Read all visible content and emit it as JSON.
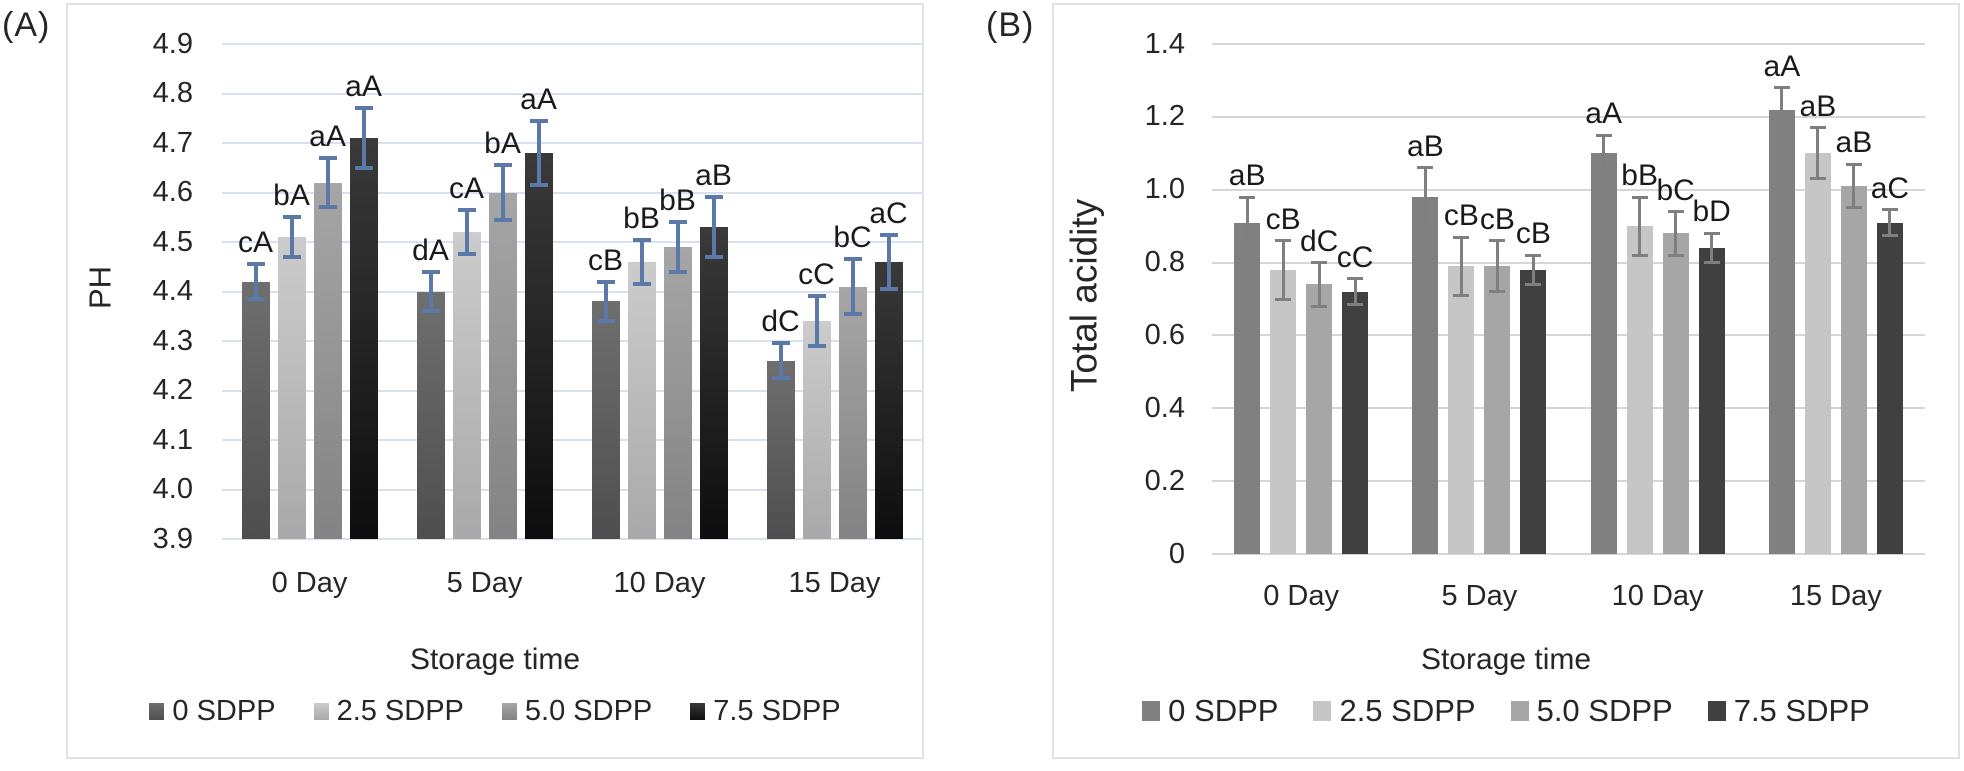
{
  "panel_labels": [
    "(A)",
    "(B)"
  ],
  "chart_data": [
    {
      "type": "bar",
      "panel": "A",
      "title": "",
      "ylabel": "PH",
      "xlabel": "Storage time",
      "categories": [
        "0 Day",
        "5 Day",
        "10 Day",
        "15 Day"
      ],
      "ylim": [
        3.9,
        4.9
      ],
      "yticks": [
        4.9,
        4.8,
        4.7,
        4.6,
        4.5,
        4.4,
        4.3,
        4.2,
        4.1,
        4.0,
        3.9
      ],
      "ytick_labels": [
        "4.9",
        "4.8",
        "4.7",
        "4.6",
        "4.5",
        "4.4",
        "4.3",
        "4.2",
        "4.1",
        "4.0",
        "3.9"
      ],
      "grid": true,
      "legend_position": "bottom",
      "colors": {
        "grid": "#d9e0ee",
        "error_bar": "#5b79a8",
        "text": "#262626"
      },
      "series": [
        {
          "name": "0 SDPP",
          "fill": [
            "#6f6f6f",
            "#4e4e4e"
          ],
          "values": [
            4.42,
            4.4,
            4.38,
            4.26
          ],
          "errors": [
            0.035,
            0.04,
            0.04,
            0.035
          ],
          "sig_labels": [
            "cA",
            "dA",
            "cB",
            "dC"
          ]
        },
        {
          "name": "2.5 SDPP",
          "fill": [
            "#cccccc",
            "#a9a9a9"
          ],
          "values": [
            4.51,
            4.52,
            4.46,
            4.34
          ],
          "errors": [
            0.04,
            0.045,
            0.045,
            0.05
          ],
          "sig_labels": [
            "bA",
            "cA",
            "bB",
            "cC"
          ]
        },
        {
          "name": "5.0 SDPP",
          "fill": [
            "#a6a6a6",
            "#838383"
          ],
          "values": [
            4.62,
            4.6,
            4.49,
            4.41
          ],
          "errors": [
            0.05,
            0.055,
            0.05,
            0.055
          ],
          "sig_labels": [
            "aA",
            "bA",
            "bB",
            "bC"
          ]
        },
        {
          "name": "7.5 SDPP",
          "fill": [
            "#3a3a3a",
            "#0d0d0d"
          ],
          "values": [
            4.71,
            4.68,
            4.53,
            4.46
          ],
          "errors": [
            0.06,
            0.065,
            0.06,
            0.055
          ],
          "sig_labels": [
            "aA",
            "aA",
            "aB",
            "aC"
          ]
        }
      ]
    },
    {
      "type": "bar",
      "panel": "B",
      "title": "",
      "ylabel": "Total acidity",
      "xlabel": "Storage time",
      "categories": [
        "0 Day",
        "5 Day",
        "10 Day",
        "15 Day"
      ],
      "ylim": [
        0,
        1.4
      ],
      "yticks": [
        1.4,
        1.2,
        1.0,
        0.8,
        0.6,
        0.4,
        0.2,
        0
      ],
      "ytick_labels": [
        "1.4",
        "1.2",
        "1.0",
        "0.8",
        "0.6",
        "0.4",
        "0.2",
        "0"
      ],
      "grid": true,
      "legend_position": "bottom",
      "colors": {
        "grid": "#d6d6d6",
        "error_bar": "#7f7f7f",
        "text": "#262626"
      },
      "series": [
        {
          "name": "0 SDPP",
          "fill": "#808080",
          "values": [
            0.91,
            0.98,
            1.1,
            1.22
          ],
          "errors": [
            0.07,
            0.08,
            0.05,
            0.06
          ],
          "sig_labels": [
            "aB",
            "aB",
            "aA",
            "aA"
          ]
        },
        {
          "name": "2.5 SDPP",
          "fill": "#c6c6c6",
          "values": [
            0.78,
            0.79,
            0.9,
            1.1
          ],
          "errors": [
            0.08,
            0.08,
            0.08,
            0.07
          ],
          "sig_labels": [
            "cB",
            "cB",
            "bB",
            "aB"
          ]
        },
        {
          "name": "5.0 SDPP",
          "fill": "#a6a6a6",
          "values": [
            0.74,
            0.79,
            0.88,
            1.01
          ],
          "errors": [
            0.06,
            0.07,
            0.06,
            0.06
          ],
          "sig_labels": [
            "dC",
            "cB",
            "bC",
            "aB"
          ]
        },
        {
          "name": "7.5 SDPP",
          "fill": "#404040",
          "values": [
            0.72,
            0.78,
            0.84,
            0.91
          ],
          "errors": [
            0.035,
            0.04,
            0.04,
            0.035
          ],
          "sig_labels": [
            "cC",
            "cB",
            "bD",
            "aC"
          ]
        }
      ]
    }
  ]
}
